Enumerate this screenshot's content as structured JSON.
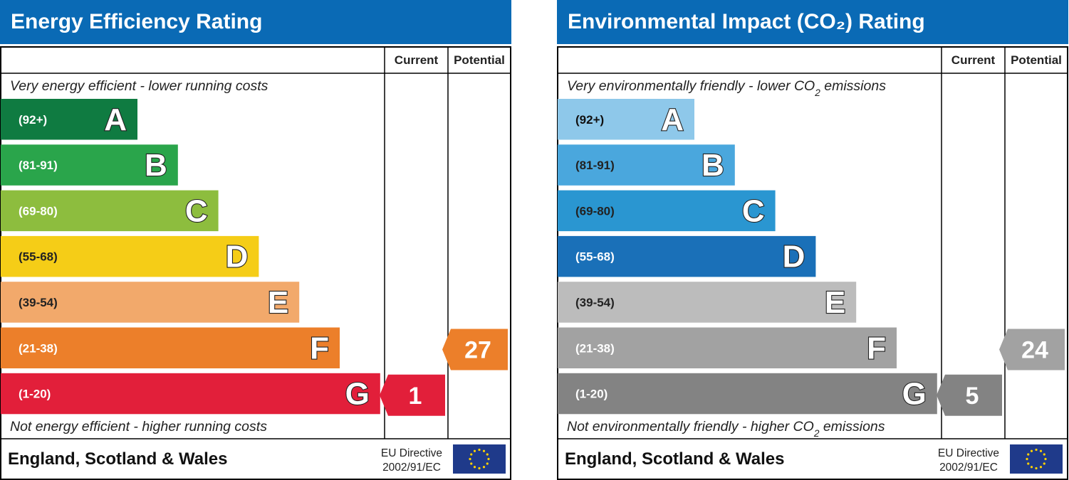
{
  "chart_data": [
    {
      "type": "bar",
      "title": "Energy Efficiency Rating",
      "columns": [
        "Current",
        "Potential"
      ],
      "top_note": "Very energy efficient - lower running costs",
      "bottom_note": "Not energy efficient - higher running costs",
      "bands": [
        {
          "letter": "A",
          "range": "(92+)",
          "color": "#0f7b41"
        },
        {
          "letter": "B",
          "range": "(81-91)",
          "color": "#2aa54b"
        },
        {
          "letter": "C",
          "range": "(69-80)",
          "color": "#8dbd3e"
        },
        {
          "letter": "D",
          "range": "(55-68)",
          "color": "#f5cd17"
        },
        {
          "letter": "E",
          "range": "(39-54)",
          "color": "#f2a96b"
        },
        {
          "letter": "F",
          "range": "(21-38)",
          "color": "#ec7f2a"
        },
        {
          "letter": "G",
          "range": "(1-20)",
          "color": "#e21f3a"
        }
      ],
      "current": {
        "value": 1,
        "label": "1",
        "band": "G",
        "color": "#e21f3a"
      },
      "potential": {
        "value": 27,
        "label": "27",
        "band": "F",
        "color": "#ec7f2a"
      },
      "footer": {
        "region": "England, Scotland & Wales",
        "directive_line1": "EU Directive",
        "directive_line2": "2002/91/EC"
      }
    },
    {
      "type": "bar",
      "title": "Environmental Impact (CO₂) Rating",
      "columns": [
        "Current",
        "Potential"
      ],
      "top_note": "Very environmentally friendly - lower CO₂ emissions",
      "bottom_note": "Not environmentally friendly - higher CO₂ emissions",
      "bands": [
        {
          "letter": "A",
          "range": "(92+)",
          "color": "#8ec8ea"
        },
        {
          "letter": "B",
          "range": "(81-91)",
          "color": "#4aa7dd"
        },
        {
          "letter": "C",
          "range": "(69-80)",
          "color": "#2a96d1"
        },
        {
          "letter": "D",
          "range": "(55-68)",
          "color": "#1a70b8"
        },
        {
          "letter": "E",
          "range": "(39-54)",
          "color": "#bcbcbc"
        },
        {
          "letter": "F",
          "range": "(21-38)",
          "color": "#a2a2a2"
        },
        {
          "letter": "G",
          "range": "(1-20)",
          "color": "#838383"
        }
      ],
      "current": {
        "value": 5,
        "label": "5",
        "band": "G",
        "color": "#838383"
      },
      "potential": {
        "value": 24,
        "label": "24",
        "band": "F",
        "color": "#a2a2a2"
      },
      "footer": {
        "region": "England, Scotland & Wales",
        "directive_line1": "EU Directive",
        "directive_line2": "2002/91/EC"
      }
    }
  ]
}
